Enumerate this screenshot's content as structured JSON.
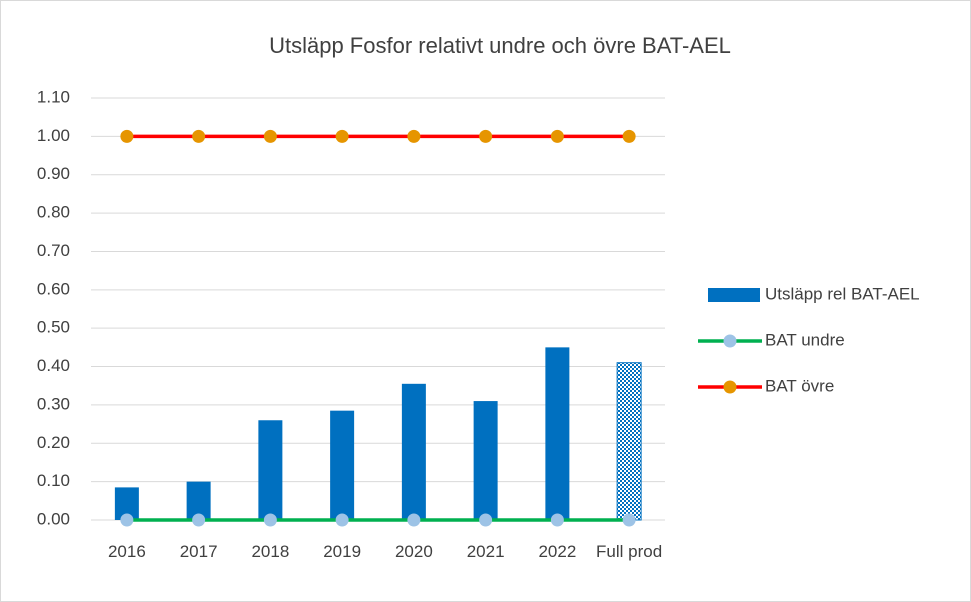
{
  "chart_data": {
    "type": "bar",
    "title": "Utsläpp Fosfor relativt undre och övre BAT-AEL",
    "categories": [
      "2016",
      "2017",
      "2018",
      "2019",
      "2020",
      "2021",
      "2022",
      "Full prod"
    ],
    "series": [
      {
        "name": "Utsläpp rel BAT-AEL",
        "type": "bar",
        "color": "#0070c0",
        "values": [
          0.085,
          0.1,
          0.26,
          0.285,
          0.355,
          0.31,
          0.45,
          0.41
        ],
        "patterned": [
          false,
          false,
          false,
          false,
          false,
          false,
          false,
          true
        ]
      },
      {
        "name": "BAT undre",
        "type": "line",
        "color": "#00b050",
        "marker_color": "#9dc3e6",
        "values": [
          0,
          0,
          0,
          0,
          0,
          0,
          0,
          0
        ]
      },
      {
        "name": "BAT övre",
        "type": "line",
        "color": "#ff0000",
        "marker_color": "#e69500",
        "values": [
          1,
          1,
          1,
          1,
          1,
          1,
          1,
          1
        ]
      }
    ],
    "ylim": [
      0,
      1.1
    ],
    "yticks": [
      {
        "value": 0,
        "label": "0.00"
      },
      {
        "value": 0.1,
        "label": "0.10"
      },
      {
        "value": 0.2,
        "label": "0.20"
      },
      {
        "value": 0.3,
        "label": "0.30"
      },
      {
        "value": 0.4,
        "label": "0.40"
      },
      {
        "value": 0.5,
        "label": "0.50"
      },
      {
        "value": 0.6,
        "label": "0.60"
      },
      {
        "value": 0.7,
        "label": "0.70"
      },
      {
        "value": 0.8,
        "label": "0.80"
      },
      {
        "value": 0.9,
        "label": "0.90"
      },
      {
        "value": 1,
        "label": "1.00"
      },
      {
        "value": 1.1,
        "label": "1.10"
      }
    ],
    "grid": true,
    "legend": "right"
  }
}
